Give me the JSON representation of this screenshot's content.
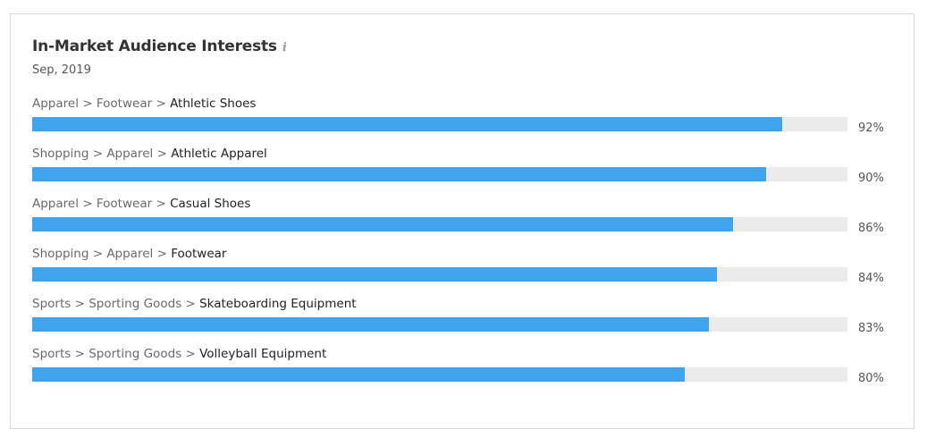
{
  "widget": {
    "title": "In-Market Audience Interests",
    "info_icon": "i",
    "period": "Sep, 2019"
  },
  "colors": {
    "bar": "#3fa4ed",
    "track": "#ebebeb"
  },
  "chart_data": {
    "type": "bar",
    "orientation": "horizontal",
    "title": "In-Market Audience Interests",
    "subtitle": "Sep, 2019",
    "xlim": [
      0,
      100
    ],
    "unit": "%",
    "grid": false,
    "categories": [
      "Apparel > Footwear > Athletic Shoes",
      "Shopping > Apparel > Athletic Apparel",
      "Apparel > Footwear > Casual Shoes",
      "Shopping > Apparel > Footwear",
      "Sports > Sporting Goods > Skateboarding Equipment",
      "Sports > Sporting Goods > Volleyball Equipment"
    ],
    "values": [
      92,
      90,
      86,
      84,
      83,
      80
    ],
    "value_labels": [
      "92%",
      "90%",
      "86%",
      "84%",
      "83%",
      "80%"
    ],
    "rows": [
      {
        "path": [
          "Apparel",
          "Footwear"
        ],
        "leaf": "Athletic Shoes",
        "value": 92,
        "label": "92%"
      },
      {
        "path": [
          "Shopping",
          "Apparel"
        ],
        "leaf": "Athletic Apparel",
        "value": 90,
        "label": "90%"
      },
      {
        "path": [
          "Apparel",
          "Footwear"
        ],
        "leaf": "Casual Shoes",
        "value": 86,
        "label": "86%"
      },
      {
        "path": [
          "Shopping",
          "Apparel"
        ],
        "leaf": "Footwear",
        "value": 84,
        "label": "84%"
      },
      {
        "path": [
          "Sports",
          "Sporting Goods"
        ],
        "leaf": "Skateboarding Equipment",
        "value": 83,
        "label": "83%"
      },
      {
        "path": [
          "Sports",
          "Sporting Goods"
        ],
        "leaf": "Volleyball Equipment",
        "value": 80,
        "label": "80%"
      }
    ]
  }
}
